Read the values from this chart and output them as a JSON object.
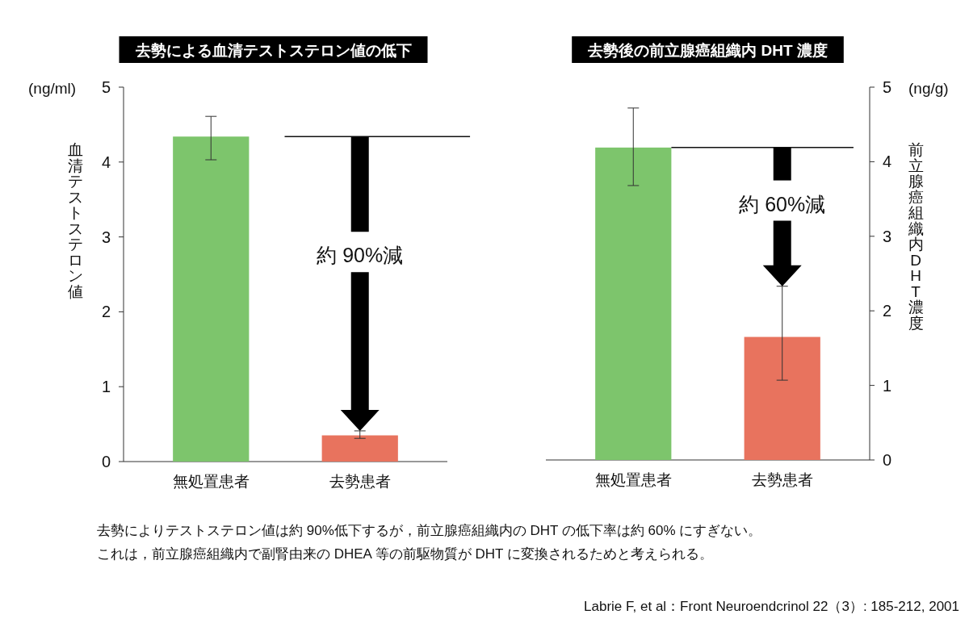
{
  "chart_data": [
    {
      "type": "bar",
      "title": "去勢による血清テストステロン値の低下",
      "ylabel": "血清テストステロン値",
      "categories": [
        "無処置患者",
        "去勢患者"
      ],
      "series": [
        {
          "values": [
            4.34,
            0.35
          ],
          "colors": [
            "#7dc56c",
            "#e8735e"
          ],
          "errors": [
            [
              4.03,
              4.61
            ],
            [
              0.31,
              0.41
            ]
          ]
        }
      ],
      "ylim": [
        0,
        5
      ],
      "yticks": [
        0,
        1,
        2,
        3,
        4,
        5
      ],
      "ref_lines": [
        {
          "axis": "y",
          "value": 4.34
        }
      ],
      "annotations": [
        "(ng/ml)",
        "約 90%減"
      ]
    },
    {
      "type": "bar",
      "title": "去勢後の前立腺癌組織内 DHT 濃度",
      "y2label": "前立腺癌組織内DHT濃度",
      "categories": [
        "無処置患者",
        "去勢患者"
      ],
      "series": [
        {
          "axis": "y2",
          "values": [
            4.19,
            1.65
          ],
          "colors": [
            "#7dc56c",
            "#e8735e"
          ],
          "errors": [
            [
              3.68,
              4.72
            ],
            [
              1.07,
              2.33
            ]
          ]
        }
      ],
      "y2lim": [
        0,
        5
      ],
      "y2ticks": [
        0,
        1,
        2,
        3,
        4,
        5
      ],
      "ref_lines": [
        {
          "axis": "y2",
          "value": 4.19
        }
      ],
      "annotations": [
        "(ng/g)",
        "約 60%減",
        "去勢によりテストステロン値は約 90%低下するが，前立腺癌組織内の DHT の低下率は約 60% にすぎない。",
        "これは，前立腺癌組織内で副腎由来の DHEA 等の前駆物質が DHT に変換されるためと考えられる。",
        "Labrie F, et al：Front Neuroendcrinol 22（3）: 185-212, 2001"
      ]
    }
  ]
}
